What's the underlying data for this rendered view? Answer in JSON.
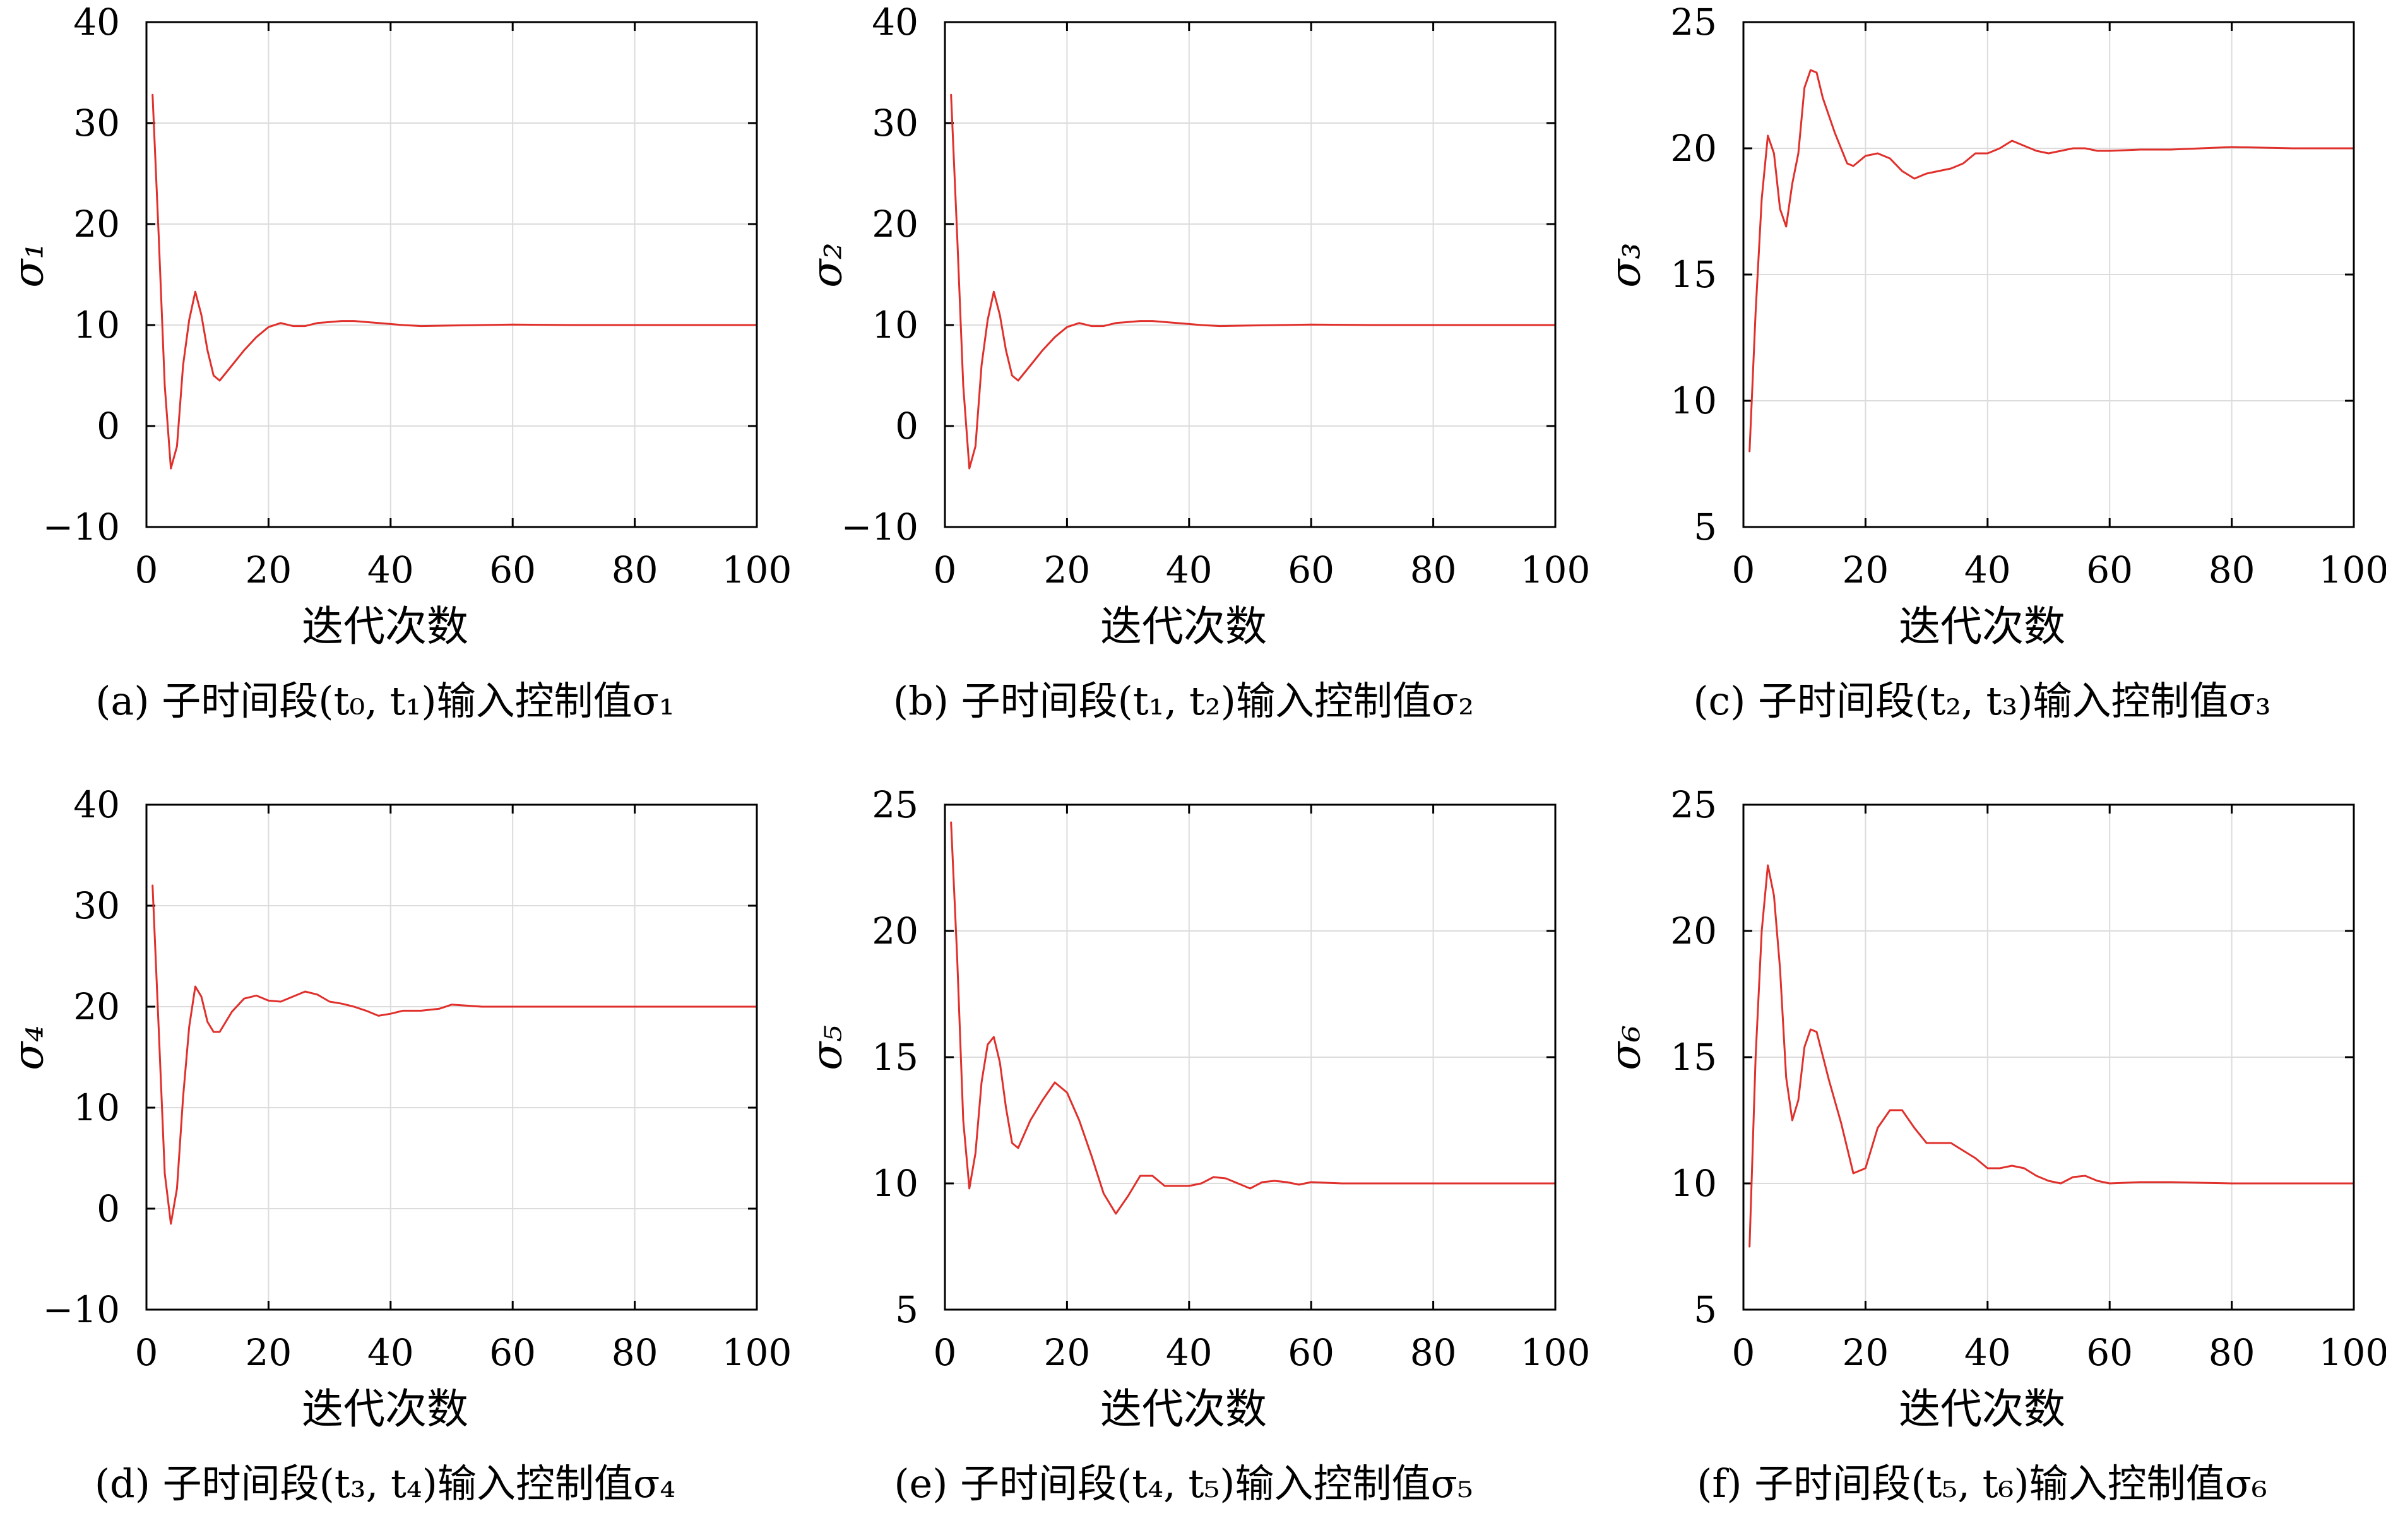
{
  "figure": {
    "line_color": "#e0302c",
    "grid_color": "#dcdcdc",
    "xlabel": "迭代次数"
  },
  "chart_data": [
    {
      "id": "a",
      "type": "line",
      "caption": "(a) 子时间段(t₀, t₁)输入控制值σ₁",
      "ylabel": "σ₁",
      "xlim": [
        0,
        100
      ],
      "ylim": [
        -10,
        40
      ],
      "xticks": [
        0,
        20,
        40,
        60,
        80,
        100
      ],
      "yticks": [
        -10,
        0,
        10,
        20,
        30,
        40
      ],
      "xtick_labels": [
        "0",
        "20",
        "40",
        "60",
        "80",
        "100"
      ],
      "ytick_labels": [
        "−10",
        "0",
        "10",
        "20",
        "30",
        "40"
      ],
      "grid": true,
      "x": [
        1,
        2,
        3,
        4,
        5,
        6,
        7,
        8,
        9,
        10,
        11,
        12,
        14,
        16,
        18,
        20,
        22,
        24,
        26,
        28,
        30,
        32,
        34,
        36,
        38,
        40,
        42,
        45,
        50,
        55,
        60,
        70,
        80,
        90,
        100
      ],
      "y": [
        32.8,
        19,
        4,
        -4.2,
        -2,
        6,
        10.5,
        13.3,
        11,
        7.5,
        5,
        4.5,
        6,
        7.5,
        8.8,
        9.8,
        10.2,
        9.9,
        9.9,
        10.2,
        10.3,
        10.4,
        10.4,
        10.3,
        10.2,
        10.1,
        10,
        9.9,
        9.95,
        10,
        10.05,
        10,
        10,
        10,
        10
      ]
    },
    {
      "id": "b",
      "type": "line",
      "caption": "(b) 子时间段(t₁, t₂)输入控制值σ₂",
      "ylabel": "σ₂",
      "xlim": [
        0,
        100
      ],
      "ylim": [
        -10,
        40
      ],
      "xticks": [
        0,
        20,
        40,
        60,
        80,
        100
      ],
      "yticks": [
        -10,
        0,
        10,
        20,
        30,
        40
      ],
      "xtick_labels": [
        "0",
        "20",
        "40",
        "60",
        "80",
        "100"
      ],
      "ytick_labels": [
        "−10",
        "0",
        "10",
        "20",
        "30",
        "40"
      ],
      "grid": true,
      "x": [
        1,
        2,
        3,
        4,
        5,
        6,
        7,
        8,
        9,
        10,
        11,
        12,
        14,
        16,
        18,
        20,
        22,
        24,
        26,
        28,
        30,
        32,
        34,
        36,
        38,
        40,
        42,
        45,
        50,
        55,
        60,
        70,
        80,
        90,
        100
      ],
      "y": [
        32.8,
        19,
        4,
        -4.2,
        -2,
        6,
        10.5,
        13.3,
        11,
        7.5,
        5,
        4.5,
        6,
        7.5,
        8.8,
        9.8,
        10.2,
        9.9,
        9.9,
        10.2,
        10.3,
        10.4,
        10.4,
        10.3,
        10.2,
        10.1,
        10,
        9.9,
        9.95,
        10,
        10.05,
        10,
        10,
        10,
        10
      ]
    },
    {
      "id": "c",
      "type": "line",
      "caption": "(c) 子时间段(t₂, t₃)输入控制值σ₃",
      "ylabel": "σ₃",
      "xlim": [
        0,
        100
      ],
      "ylim": [
        5,
        25
      ],
      "xticks": [
        0,
        20,
        40,
        60,
        80,
        100
      ],
      "yticks": [
        5,
        10,
        15,
        20,
        25
      ],
      "xtick_labels": [
        "0",
        "20",
        "40",
        "60",
        "80",
        "100"
      ],
      "ytick_labels": [
        "5",
        "10",
        "15",
        "20",
        "25"
      ],
      "grid": true,
      "x": [
        1,
        2,
        3,
        4,
        5,
        6,
        7,
        8,
        9,
        10,
        11,
        12,
        13,
        15,
        17,
        18,
        20,
        22,
        24,
        26,
        28,
        30,
        32,
        34,
        36,
        38,
        40,
        42,
        44,
        46,
        48,
        50,
        52,
        54,
        56,
        58,
        60,
        65,
        70,
        75,
        80,
        90,
        100
      ],
      "y": [
        8,
        13.5,
        18,
        20.5,
        19.8,
        17.6,
        16.9,
        18.6,
        19.8,
        22.4,
        23.1,
        23,
        22,
        20.6,
        19.4,
        19.3,
        19.7,
        19.8,
        19.6,
        19.1,
        18.8,
        19,
        19.1,
        19.2,
        19.4,
        19.8,
        19.8,
        20,
        20.3,
        20.1,
        19.9,
        19.8,
        19.9,
        20,
        20,
        19.9,
        19.9,
        19.95,
        19.95,
        20,
        20.05,
        20,
        20
      ]
    },
    {
      "id": "d",
      "type": "line",
      "caption": "(d) 子时间段(t₃, t₄)输入控制值σ₄",
      "ylabel": "σ₄",
      "xlim": [
        0,
        100
      ],
      "ylim": [
        -10,
        40
      ],
      "xticks": [
        0,
        20,
        40,
        60,
        80,
        100
      ],
      "yticks": [
        -10,
        0,
        10,
        20,
        30,
        40
      ],
      "xtick_labels": [
        "0",
        "20",
        "40",
        "60",
        "80",
        "100"
      ],
      "ytick_labels": [
        "−10",
        "0",
        "10",
        "20",
        "30",
        "40"
      ],
      "grid": true,
      "x": [
        1,
        2,
        3,
        4,
        5,
        6,
        7,
        8,
        9,
        10,
        11,
        12,
        14,
        16,
        18,
        20,
        22,
        24,
        26,
        28,
        30,
        32,
        34,
        36,
        38,
        40,
        42,
        45,
        48,
        50,
        55,
        60,
        70,
        80,
        90,
        100
      ],
      "y": [
        32,
        18,
        3.5,
        -1.5,
        2,
        11,
        18,
        22,
        21,
        18.5,
        17.5,
        17.5,
        19.5,
        20.8,
        21.1,
        20.6,
        20.5,
        21,
        21.5,
        21.2,
        20.5,
        20.3,
        20,
        19.6,
        19.1,
        19.3,
        19.6,
        19.6,
        19.8,
        20.2,
        20,
        20,
        20,
        20,
        20,
        20
      ]
    },
    {
      "id": "e",
      "type": "line",
      "caption": "(e) 子时间段(t₄, t₅)输入控制值σ₅",
      "ylabel": "σ₅",
      "xlim": [
        0,
        100
      ],
      "ylim": [
        5,
        25
      ],
      "xticks": [
        0,
        20,
        40,
        60,
        80,
        100
      ],
      "yticks": [
        5,
        10,
        15,
        20,
        25
      ],
      "xtick_labels": [
        "0",
        "20",
        "40",
        "60",
        "80",
        "100"
      ],
      "ytick_labels": [
        "5",
        "10",
        "15",
        "20",
        "25"
      ],
      "grid": true,
      "x": [
        1,
        2,
        3,
        4,
        5,
        6,
        7,
        8,
        9,
        10,
        11,
        12,
        14,
        16,
        18,
        20,
        22,
        24,
        26,
        28,
        30,
        32,
        34,
        36,
        38,
        40,
        42,
        44,
        46,
        48,
        50,
        52,
        54,
        56,
        58,
        60,
        65,
        70,
        80,
        90,
        100
      ],
      "y": [
        24.3,
        19,
        12.5,
        9.8,
        11.2,
        14,
        15.5,
        15.8,
        14.8,
        13,
        11.6,
        11.4,
        12.5,
        13.3,
        14,
        13.6,
        12.5,
        11.1,
        9.6,
        8.8,
        9.5,
        10.3,
        10.3,
        9.9,
        9.9,
        9.9,
        10,
        10.25,
        10.2,
        10,
        9.8,
        10.05,
        10.1,
        10.05,
        9.95,
        10.05,
        10,
        10,
        10,
        10,
        10
      ]
    },
    {
      "id": "f",
      "type": "line",
      "caption": "(f) 子时间段(t₅, t₆)输入控制值σ₆",
      "ylabel": "σ₆",
      "xlim": [
        0,
        100
      ],
      "ylim": [
        5,
        25
      ],
      "xticks": [
        0,
        20,
        40,
        60,
        80,
        100
      ],
      "yticks": [
        5,
        10,
        15,
        20,
        25
      ],
      "xtick_labels": [
        "0",
        "20",
        "40",
        "60",
        "80",
        "100"
      ],
      "ytick_labels": [
        "5",
        "10",
        "15",
        "20",
        "25"
      ],
      "grid": true,
      "x": [
        1,
        2,
        3,
        4,
        5,
        6,
        7,
        8,
        9,
        10,
        11,
        12,
        14,
        16,
        18,
        20,
        22,
        24,
        26,
        28,
        30,
        32,
        34,
        36,
        38,
        40,
        42,
        44,
        46,
        48,
        50,
        52,
        54,
        56,
        58,
        60,
        65,
        70,
        80,
        90,
        100
      ],
      "y": [
        7.5,
        15,
        20,
        22.6,
        21.4,
        18.5,
        14.2,
        12.5,
        13.3,
        15.4,
        16.1,
        16,
        14.1,
        12.4,
        10.4,
        10.6,
        12.2,
        12.9,
        12.9,
        12.2,
        11.6,
        11.6,
        11.6,
        11.3,
        11,
        10.6,
        10.6,
        10.7,
        10.6,
        10.3,
        10.1,
        10,
        10.25,
        10.3,
        10.1,
        10,
        10.05,
        10.05,
        10,
        10,
        10
      ]
    }
  ]
}
